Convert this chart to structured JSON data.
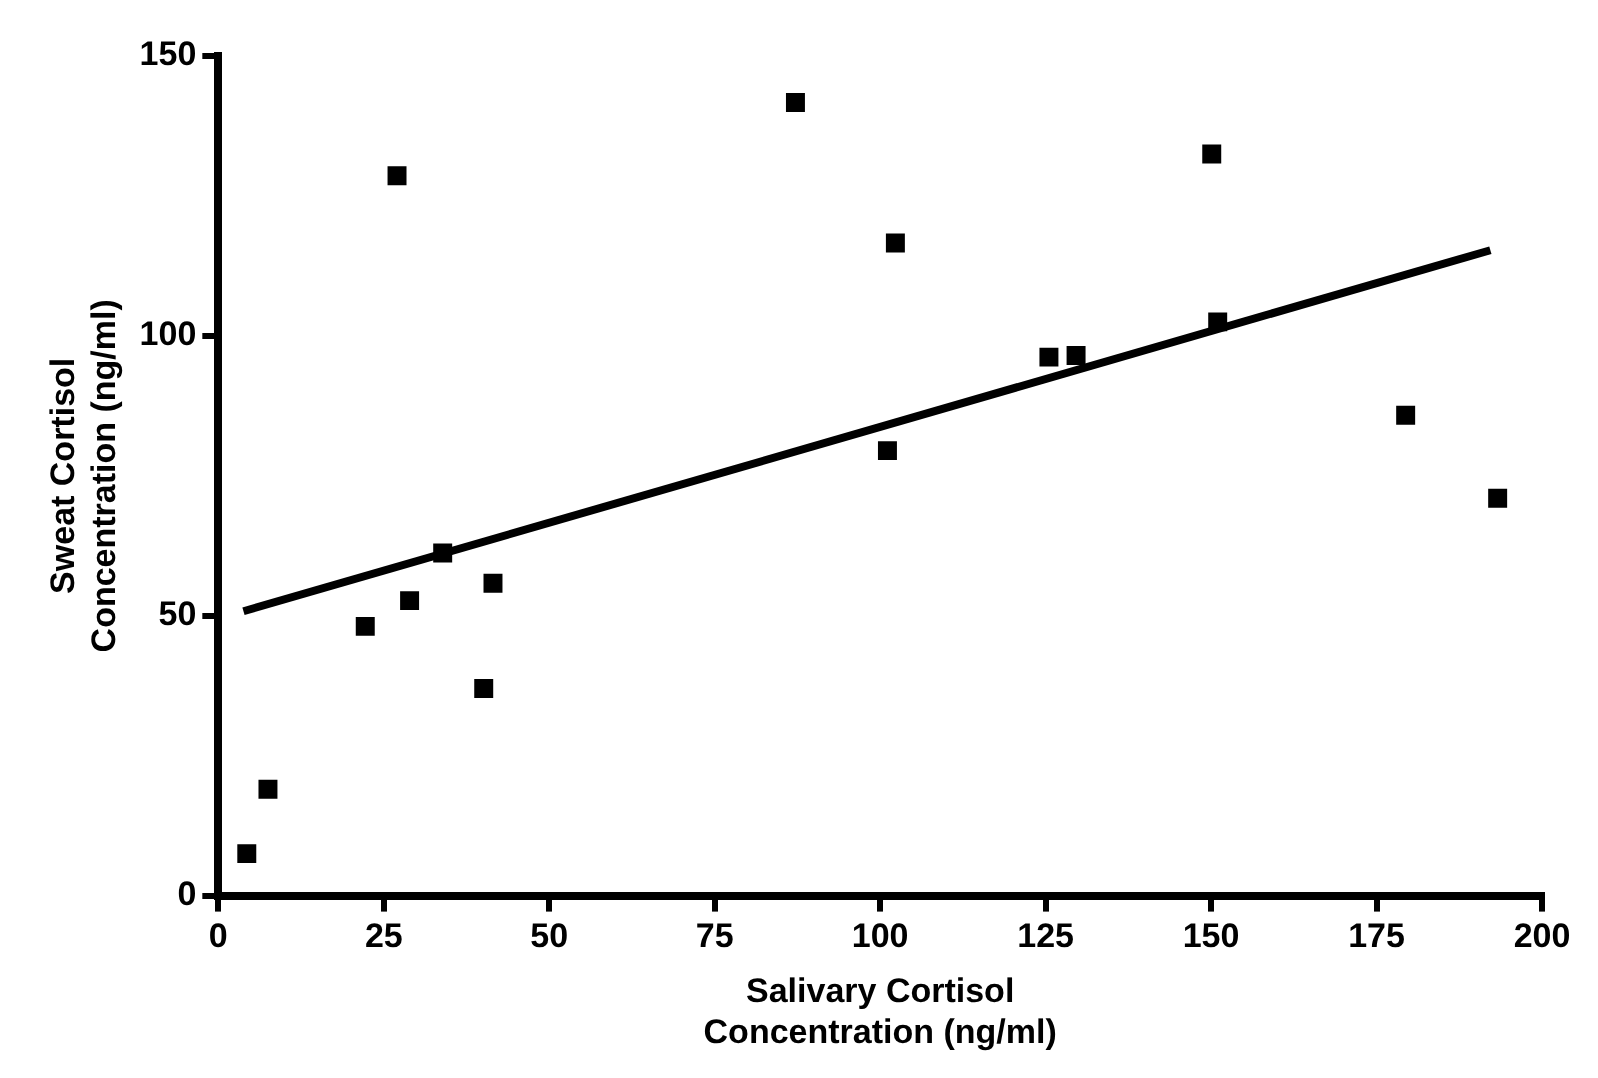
{
  "chart_data": {
    "type": "scatter",
    "xlabel": "Salivary Cortisol\nConcentration (ng/ml)",
    "ylabel": "Sweat Cortisol\nConcentration (ng/ml)",
    "xlim": [
      0,
      200
    ],
    "ylim": [
      0,
      150
    ],
    "xticks": [
      0,
      25,
      50,
      75,
      100,
      125,
      150,
      175,
      200
    ],
    "yticks": [
      0,
      50,
      100,
      150
    ],
    "grid": false,
    "legend": false,
    "marker": "square",
    "series": [
      {
        "color": "#000000",
        "x": [
          4.3,
          7.5,
          22.2,
          27,
          28.9,
          33.9,
          40.1,
          41.5,
          87.2,
          101.1,
          102.3,
          125.5,
          129.6,
          150.1,
          151,
          179.4,
          193.3
        ],
        "values": [
          7.5,
          19,
          48.1,
          128.6,
          52.7,
          61.2,
          37,
          55.8,
          141.7,
          79.5,
          116.6,
          96.2,
          96.5,
          132.5,
          102.5,
          85.8,
          71
        ]
      },
      {
        "type": "line",
        "color": "#000000",
        "marker": "none",
        "x": [
          3.8,
          192.2
        ],
        "values": [
          50.8,
          115.3
        ]
      }
    ]
  }
}
